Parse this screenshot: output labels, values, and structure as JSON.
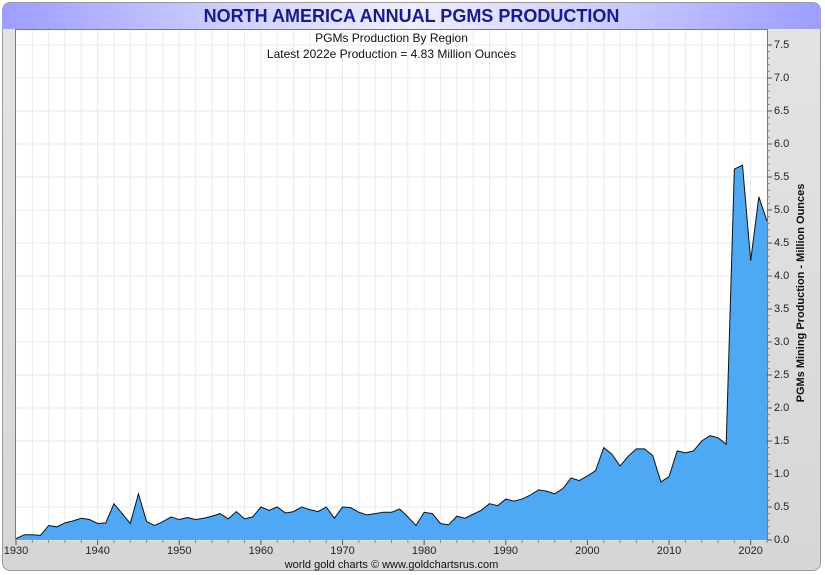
{
  "chart_data": {
    "type": "area",
    "title": "NORTH AMERICA ANNUAL PGMS PRODUCTION",
    "subtitle": "PGMs Production By Region",
    "annotation": "Latest 2022e Production = 4.83 Million Ounces",
    "ylabel": "PGMs Mining Production - Million Ounces",
    "credit": "world gold charts © www.goldchartsrus.com",
    "xlim": [
      1930,
      2022
    ],
    "ylim": [
      0,
      7.5
    ],
    "y_axis_side": "right",
    "grid": true,
    "fill_color": "#4ea8f3",
    "line_color": "#111111",
    "title_color": "#1a1a8c",
    "xticks": [
      "1930",
      "1940",
      "1950",
      "1960",
      "1970",
      "1980",
      "1990",
      "2000",
      "2010",
      "2020"
    ],
    "yticks": [
      "0.0",
      "0.5",
      "1.0",
      "1.5",
      "2.0",
      "2.5",
      "3.0",
      "3.5",
      "4.0",
      "4.5",
      "5.0",
      "5.5",
      "6.0",
      "6.5",
      "7.0",
      "7.5"
    ],
    "x": [
      1930,
      1931,
      1932,
      1933,
      1934,
      1935,
      1936,
      1937,
      1938,
      1939,
      1940,
      1941,
      1942,
      1943,
      1944,
      1945,
      1946,
      1947,
      1948,
      1949,
      1950,
      1951,
      1952,
      1953,
      1954,
      1955,
      1956,
      1957,
      1958,
      1959,
      1960,
      1961,
      1962,
      1963,
      1964,
      1965,
      1966,
      1967,
      1968,
      1969,
      1970,
      1971,
      1972,
      1973,
      1974,
      1975,
      1976,
      1977,
      1978,
      1979,
      1980,
      1981,
      1982,
      1983,
      1984,
      1985,
      1986,
      1987,
      1988,
      1989,
      1990,
      1991,
      1992,
      1993,
      1994,
      1995,
      1996,
      1997,
      1998,
      1999,
      2000,
      2001,
      2002,
      2003,
      2004,
      2005,
      2006,
      2007,
      2008,
      2009,
      2010,
      2011,
      2012,
      2013,
      2014,
      2015,
      2016,
      2017,
      2018,
      2019,
      2020,
      2021,
      2022
    ],
    "values": [
      0.02,
      0.08,
      0.08,
      0.07,
      0.22,
      0.2,
      0.26,
      0.29,
      0.33,
      0.31,
      0.25,
      0.26,
      0.55,
      0.4,
      0.25,
      0.7,
      0.28,
      0.22,
      0.28,
      0.35,
      0.31,
      0.34,
      0.31,
      0.33,
      0.36,
      0.4,
      0.32,
      0.43,
      0.32,
      0.35,
      0.5,
      0.45,
      0.5,
      0.41,
      0.43,
      0.5,
      0.46,
      0.43,
      0.5,
      0.33,
      0.5,
      0.49,
      0.42,
      0.38,
      0.4,
      0.42,
      0.42,
      0.47,
      0.35,
      0.22,
      0.42,
      0.4,
      0.25,
      0.23,
      0.36,
      0.33,
      0.39,
      0.45,
      0.55,
      0.52,
      0.62,
      0.59,
      0.62,
      0.68,
      0.76,
      0.74,
      0.7,
      0.78,
      0.94,
      0.9,
      0.97,
      1.05,
      1.4,
      1.3,
      1.12,
      1.27,
      1.38,
      1.38,
      1.28,
      0.88,
      0.96,
      1.35,
      1.32,
      1.35,
      1.5,
      1.58,
      1.55,
      1.45,
      5.62,
      5.68,
      4.23,
      5.2,
      4.83
    ]
  }
}
